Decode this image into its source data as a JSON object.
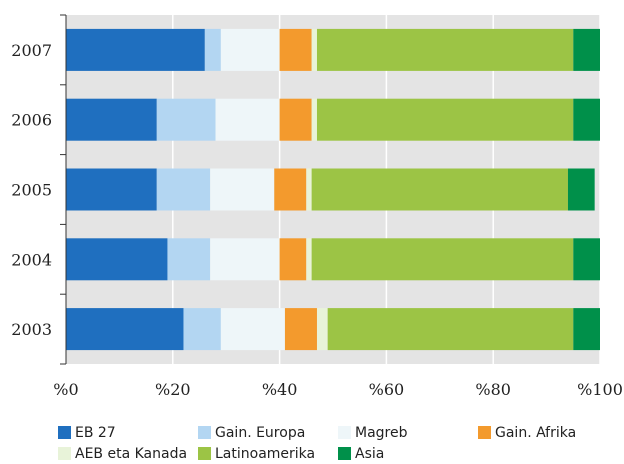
{
  "chart_data": {
    "type": "bar",
    "orientation": "horizontal",
    "stacked": true,
    "categories": [
      "2007",
      "2006",
      "2005",
      "2004",
      "2003"
    ],
    "series": [
      {
        "name": "EB 27",
        "color": "#1f6fbf",
        "values": [
          26,
          17,
          17,
          19,
          22
        ]
      },
      {
        "name": "Gain. Europa",
        "color": "#b3d6f2",
        "values": [
          3,
          11,
          10,
          8,
          7
        ]
      },
      {
        "name": "Magreb",
        "color": "#eef6f9",
        "values": [
          11,
          12,
          12,
          13,
          12
        ]
      },
      {
        "name": "Gain. Afrika",
        "color": "#f39a2d",
        "values": [
          6,
          6,
          6,
          5,
          6
        ]
      },
      {
        "name": "AEB eta Kanada",
        "color": "#e8f3d9",
        "values": [
          1,
          1,
          1,
          1,
          2
        ]
      },
      {
        "name": "Latinoamerika",
        "color": "#9cc445",
        "values": [
          48,
          48,
          48,
          49,
          46
        ]
      },
      {
        "name": "Asia",
        "color": "#00904a",
        "values": [
          5,
          5,
          5,
          5,
          5
        ]
      }
    ],
    "x_ticks": [
      "%0",
      "%20",
      "%40",
      "%60",
      "%80",
      "%100"
    ],
    "xlim": [
      0,
      100
    ],
    "grid": "vertical",
    "plot_background": "#e4e4e4",
    "legend_position": "bottom"
  }
}
